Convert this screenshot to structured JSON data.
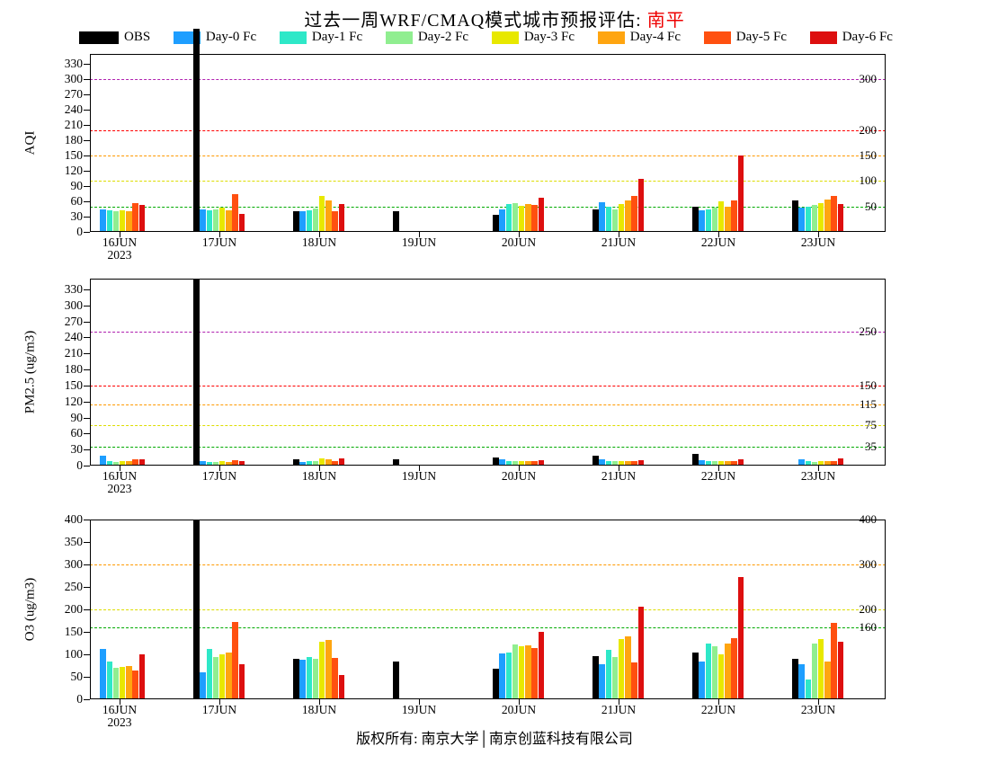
{
  "title": {
    "prefix": "过去一周WRF/CMAQ模式城市预报评估: ",
    "city": "南平",
    "city_color": "#ee0000"
  },
  "footer": "版权所有: 南京大学│南京创蓝科技有限公司",
  "legend": [
    {
      "label": "OBS",
      "color": "#000000"
    },
    {
      "label": "Day-0 Fc",
      "color": "#1e9eff"
    },
    {
      "label": "Day-1 Fc",
      "color": "#2ee8c8"
    },
    {
      "label": "Day-2 Fc",
      "color": "#90ee90"
    },
    {
      "label": "Day-3 Fc",
      "color": "#e8e800"
    },
    {
      "label": "Day-4 Fc",
      "color": "#ffa510"
    },
    {
      "label": "Day-5 Fc",
      "color": "#ff5010"
    },
    {
      "label": "Day-6 Fc",
      "color": "#dd0f0f"
    }
  ],
  "chart_data": [
    {
      "type": "bar",
      "id": "aqi",
      "ylabel": "AQI",
      "ylim": [
        0,
        350
      ],
      "yticks": [
        0,
        30,
        60,
        90,
        120,
        150,
        180,
        210,
        240,
        270,
        300,
        330
      ],
      "grid": false,
      "legend_position": "top",
      "categories": [
        "16JUN",
        "17JUN",
        "18JUN",
        "19JUN",
        "20JUN",
        "21JUN",
        "22JUN",
        "23JUN"
      ],
      "year_label": "2023",
      "thresholds": [
        {
          "value": 50,
          "label": "50",
          "color": "#00aa00"
        },
        {
          "value": 100,
          "label": "100",
          "color": "#dddd00"
        },
        {
          "value": 150,
          "label": "150",
          "color": "#ff9900"
        },
        {
          "value": 200,
          "label": "200",
          "color": "#ff0000"
        },
        {
          "value": 300,
          "label": "300",
          "color": "#b020b0"
        }
      ],
      "series": [
        {
          "name": "OBS",
          "values": [
            null,
            400,
            40,
            40,
            33,
            45,
            50,
            62
          ]
        },
        {
          "name": "Day-0 Fc",
          "values": [
            45,
            45,
            40,
            null,
            45,
            58,
            42,
            47
          ]
        },
        {
          "name": "Day-1 Fc",
          "values": [
            42,
            42,
            42,
            null,
            55,
            50,
            45,
            50
          ]
        },
        {
          "name": "Day-2 Fc",
          "values": [
            40,
            45,
            46,
            null,
            56,
            44,
            47,
            53
          ]
        },
        {
          "name": "Day-3 Fc",
          "values": [
            42,
            47,
            70,
            null,
            52,
            55,
            60,
            57
          ]
        },
        {
          "name": "Day-4 Fc",
          "values": [
            40,
            43,
            62,
            null,
            55,
            62,
            50,
            63
          ]
        },
        {
          "name": "Day-5 Fc",
          "values": [
            57,
            75,
            40,
            null,
            53,
            70,
            62,
            70
          ]
        },
        {
          "name": "Day-6 Fc",
          "values": [
            53,
            35,
            55,
            null,
            68,
            105,
            150,
            55
          ]
        }
      ]
    },
    {
      "type": "bar",
      "id": "pm25",
      "ylabel": "PM2.5 (ug/m3)",
      "ylim": [
        0,
        350
      ],
      "yticks": [
        0,
        30,
        60,
        90,
        120,
        150,
        180,
        210,
        240,
        270,
        300,
        330
      ],
      "grid": false,
      "legend_position": "top",
      "categories": [
        "16JUN",
        "17JUN",
        "18JUN",
        "19JUN",
        "20JUN",
        "21JUN",
        "22JUN",
        "23JUN"
      ],
      "year_label": "2023",
      "thresholds": [
        {
          "value": 35,
          "label": "35",
          "color": "#00aa00"
        },
        {
          "value": 75,
          "label": "75",
          "color": "#dddd00"
        },
        {
          "value": 115,
          "label": "115",
          "color": "#ff9900"
        },
        {
          "value": 150,
          "label": "150",
          "color": "#ff0000"
        },
        {
          "value": 250,
          "label": "250",
          "color": "#b020b0"
        }
      ],
      "series": [
        {
          "name": "OBS",
          "values": [
            null,
            350,
            12,
            12,
            15,
            18,
            22,
            null
          ]
        },
        {
          "name": "Day-0 Fc",
          "values": [
            18,
            9,
            7,
            null,
            12,
            12,
            10,
            12
          ]
        },
        {
          "name": "Day-1 Fc",
          "values": [
            8,
            7,
            8,
            null,
            9,
            9,
            8,
            8
          ]
        },
        {
          "name": "Day-2 Fc",
          "values": [
            7,
            7,
            8,
            null,
            8,
            8,
            8,
            7
          ]
        },
        {
          "name": "Day-3 Fc",
          "values": [
            8,
            8,
            14,
            null,
            8,
            8,
            8,
            8
          ]
        },
        {
          "name": "Day-4 Fc",
          "values": [
            8,
            7,
            12,
            null,
            9,
            9,
            8,
            8
          ]
        },
        {
          "name": "Day-5 Fc",
          "values": [
            11,
            10,
            8,
            null,
            9,
            9,
            9,
            9
          ]
        },
        {
          "name": "Day-6 Fc",
          "values": [
            11,
            8,
            14,
            null,
            10,
            10,
            12,
            13
          ]
        }
      ]
    },
    {
      "type": "bar",
      "id": "o3",
      "ylabel": "O3 (ug/m3)",
      "ylim": [
        0,
        400
      ],
      "yticks": [
        0,
        50,
        100,
        150,
        200,
        250,
        300,
        350,
        400
      ],
      "grid": false,
      "legend_position": "top",
      "categories": [
        "16JUN",
        "17JUN",
        "18JUN",
        "19JUN",
        "20JUN",
        "21JUN",
        "22JUN",
        "23JUN"
      ],
      "year_label": "2023",
      "thresholds": [
        {
          "value": 160,
          "label": "160",
          "color": "#00aa00"
        },
        {
          "value": 200,
          "label": "200",
          "color": "#dddd00"
        },
        {
          "value": 300,
          "label": "300",
          "color": "#ff9900"
        },
        {
          "value": 400,
          "label": "400",
          "color": "#ff0000"
        }
      ],
      "series": [
        {
          "name": "OBS",
          "values": [
            null,
            400,
            90,
            85,
            68,
            97,
            105,
            90
          ]
        },
        {
          "name": "Day-0 Fc",
          "values": [
            112,
            60,
            88,
            null,
            102,
            78,
            85,
            78
          ]
        },
        {
          "name": "Day-1 Fc",
          "values": [
            85,
            112,
            95,
            null,
            105,
            110,
            125,
            45
          ]
        },
        {
          "name": "Day-2 Fc",
          "values": [
            70,
            95,
            90,
            null,
            122,
            95,
            118,
            125
          ]
        },
        {
          "name": "Day-3 Fc",
          "values": [
            72,
            100,
            128,
            null,
            118,
            135,
            100,
            135
          ]
        },
        {
          "name": "Day-4 Fc",
          "values": [
            75,
            105,
            132,
            null,
            120,
            140,
            125,
            85
          ]
        },
        {
          "name": "Day-5 Fc",
          "values": [
            65,
            172,
            92,
            null,
            115,
            82,
            137,
            170
          ]
        },
        {
          "name": "Day-6 Fc",
          "values": [
            100,
            78,
            55,
            null,
            150,
            207,
            272,
            128
          ]
        }
      ]
    }
  ]
}
